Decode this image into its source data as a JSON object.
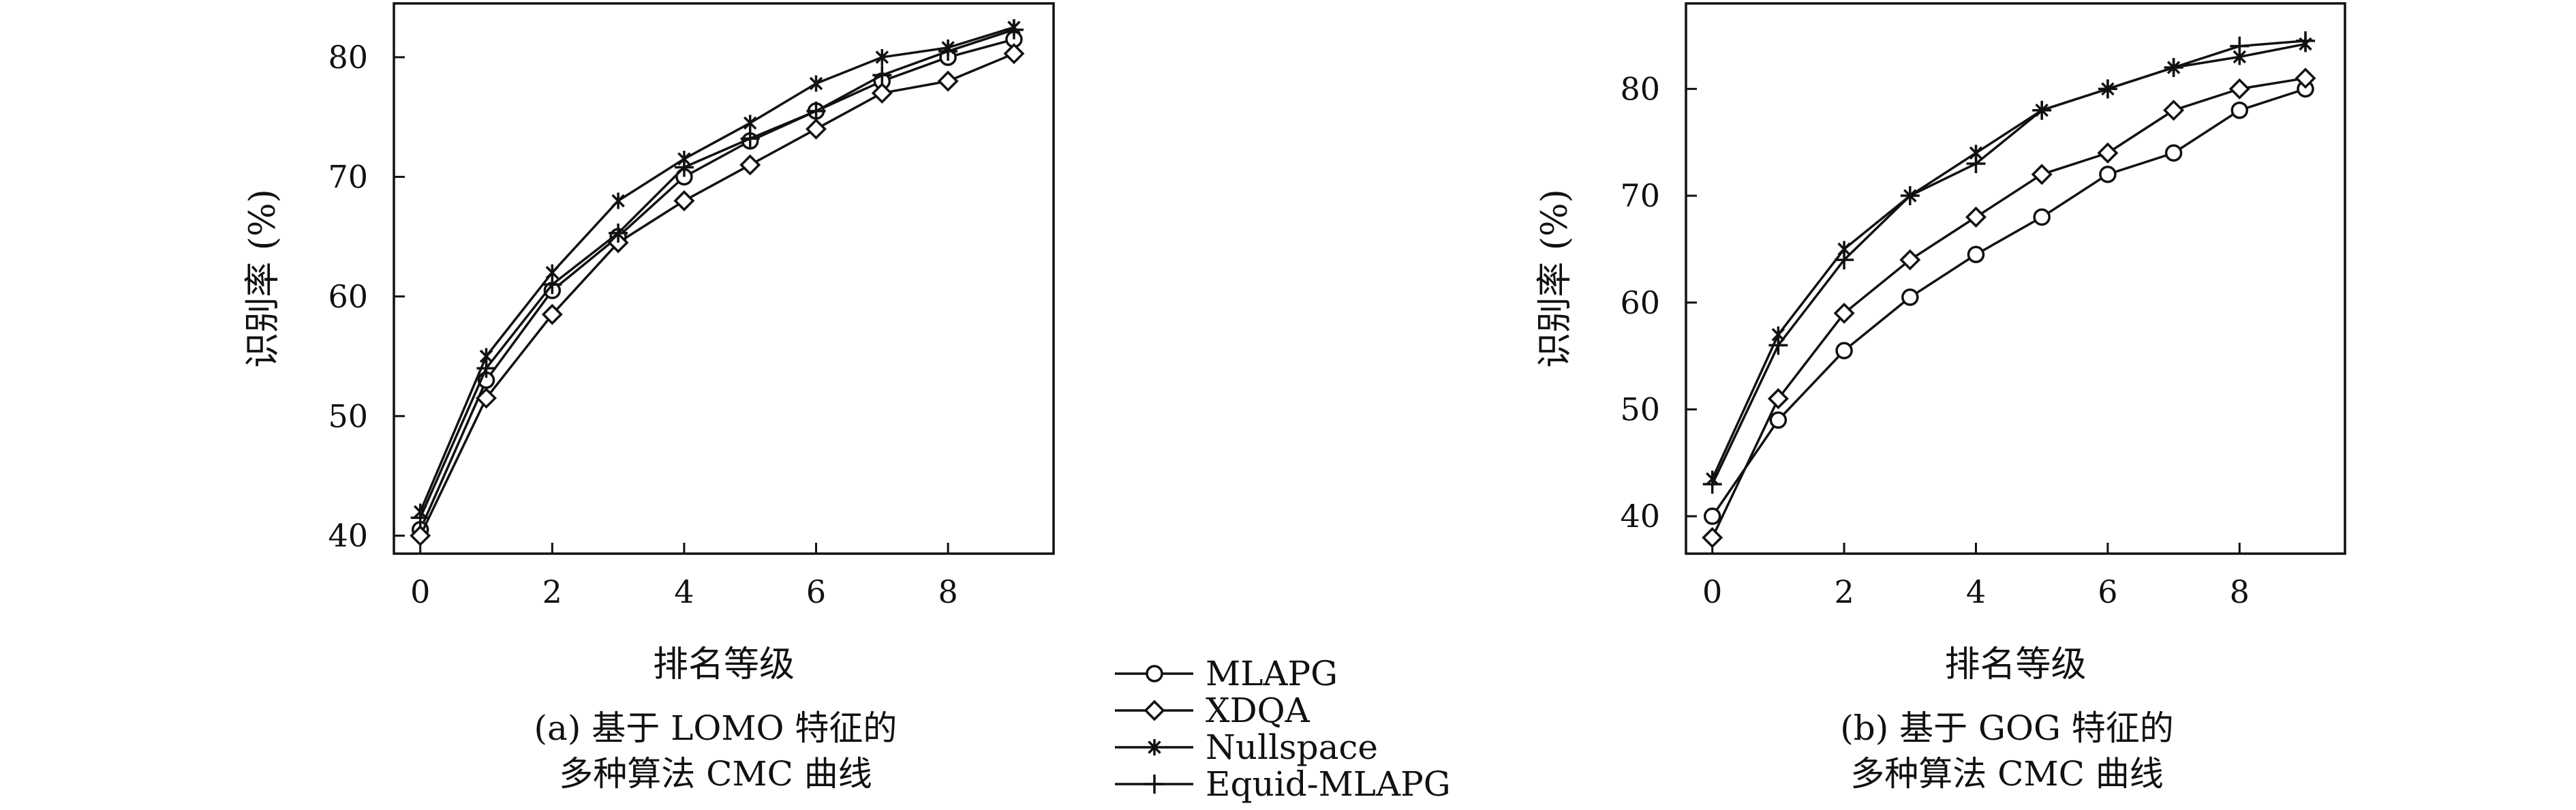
{
  "chart_data": [
    {
      "type": "line",
      "caption_line1": "(a) 基于 LOMO 特征的",
      "caption_line2": "多种算法 CMC 曲线",
      "xlabel": "排名等级",
      "ylabel": "识别率 (%)",
      "xlim": [
        -0.4,
        9.6
      ],
      "ylim": [
        38.5,
        84.5
      ],
      "xticks": [
        0,
        2,
        4,
        6,
        8
      ],
      "yticks": [
        40,
        50,
        60,
        70,
        80
      ],
      "grid": false,
      "x": [
        0,
        1,
        2,
        3,
        4,
        5,
        6,
        7,
        8,
        9
      ],
      "series": [
        {
          "name": "MLAPG",
          "marker": "circle",
          "values": [
            40.5,
            53,
            60.5,
            65,
            70,
            73,
            75.5,
            78,
            80,
            81.5
          ]
        },
        {
          "name": "XDQA",
          "marker": "diamond",
          "values": [
            40,
            51.5,
            58.5,
            64.5,
            68,
            71,
            74,
            77,
            78,
            80.3
          ]
        },
        {
          "name": "Nullspace",
          "marker": "asterisk",
          "values": [
            42,
            55,
            62,
            68,
            71.5,
            74.5,
            77.8,
            80,
            80.8,
            82.5
          ]
        },
        {
          "name": "Equid-MLAPG",
          "marker": "plus",
          "values": [
            41.5,
            54,
            61,
            65.3,
            70.8,
            73.2,
            75.5,
            78.5,
            80.5,
            82.3
          ]
        }
      ]
    },
    {
      "type": "line",
      "caption_line1": "(b) 基于 GOG 特征的",
      "caption_line2": "多种算法 CMC 曲线",
      "xlabel": "排名等级",
      "ylabel": "识别率 (%)",
      "xlim": [
        -0.4,
        9.6
      ],
      "ylim": [
        36.5,
        88
      ],
      "xticks": [
        0,
        2,
        4,
        6,
        8
      ],
      "yticks": [
        40,
        50,
        60,
        70,
        80
      ],
      "grid": false,
      "x": [
        0,
        1,
        2,
        3,
        4,
        5,
        6,
        7,
        8,
        9
      ],
      "series": [
        {
          "name": "MLAPG",
          "marker": "circle",
          "values": [
            40,
            49,
            55.5,
            60.5,
            64.5,
            68,
            72,
            74,
            78,
            80
          ]
        },
        {
          "name": "XDQA",
          "marker": "diamond",
          "values": [
            38,
            51,
            59,
            64,
            68,
            72,
            74,
            78,
            80,
            81
          ]
        },
        {
          "name": "Nullspace",
          "marker": "asterisk",
          "values": [
            43.5,
            57,
            65,
            70,
            74,
            78,
            80,
            82,
            83,
            84.2
          ]
        },
        {
          "name": "Equid-MLAPG",
          "marker": "plus",
          "values": [
            43,
            56,
            64,
            70,
            73,
            78,
            80,
            82,
            84,
            84.5
          ]
        }
      ]
    }
  ],
  "legend": {
    "placement": "bottom-center",
    "entries": [
      {
        "name": "MLAPG",
        "marker": "circle"
      },
      {
        "name": "XDQA",
        "marker": "diamond"
      },
      {
        "name": "Nullspace",
        "marker": "asterisk"
      },
      {
        "name": "Equid-MLAPG",
        "marker": "plus"
      }
    ]
  },
  "colors": {
    "line": "#111111",
    "background": "#ffffff"
  }
}
